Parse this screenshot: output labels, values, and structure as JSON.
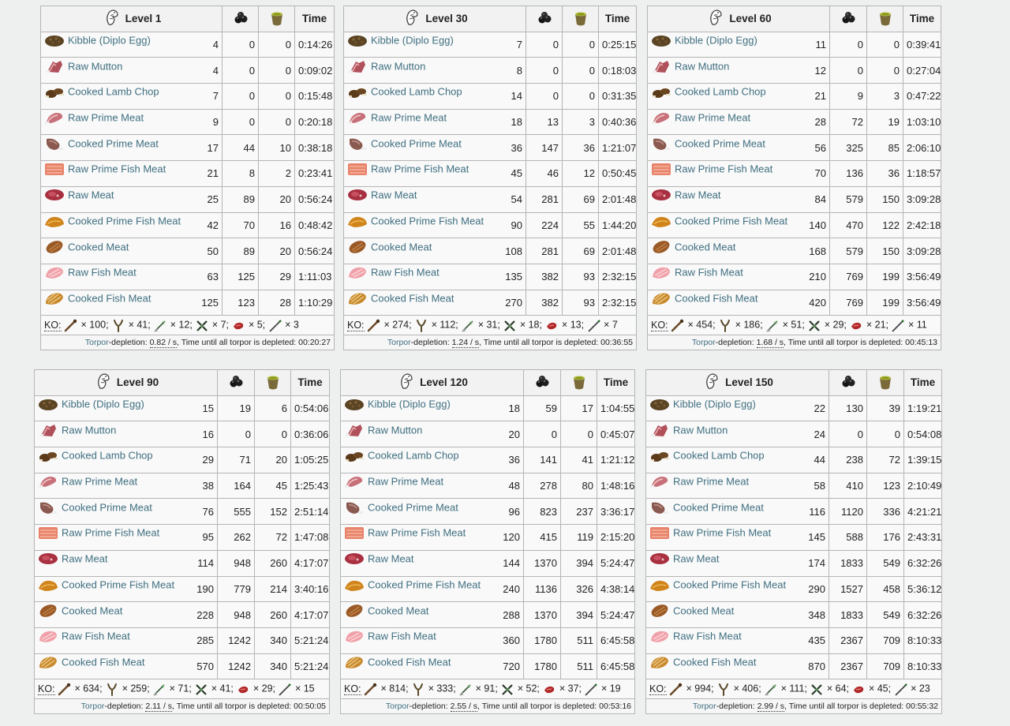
{
  "labels": {
    "time": "Time",
    "ko": "KO:",
    "torpor_link": "Torpor",
    "torpor_mid": "-depletion: ",
    "torpor_unit": " / s",
    "torpor_end": ", Time until all torpor is depleted: "
  },
  "foods": [
    {
      "name": "Kibble (Diplo Egg)",
      "icon": "kibble-icon"
    },
    {
      "name": "Raw Mutton",
      "icon": "raw-mutton-icon"
    },
    {
      "name": "Cooked Lamb Chop",
      "icon": "cooked-lamb-chop-icon"
    },
    {
      "name": "Raw Prime Meat",
      "icon": "raw-prime-meat-icon"
    },
    {
      "name": "Cooked Prime Meat",
      "icon": "cooked-prime-meat-icon"
    },
    {
      "name": "Raw Prime Fish Meat",
      "icon": "raw-prime-fish-meat-icon"
    },
    {
      "name": "Raw Meat",
      "icon": "raw-meat-icon"
    },
    {
      "name": "Cooked Prime Fish Meat",
      "icon": "cooked-prime-fish-meat-icon"
    },
    {
      "name": "Cooked Meat",
      "icon": "cooked-meat-icon"
    },
    {
      "name": "Raw Fish Meat",
      "icon": "raw-fish-meat-icon"
    },
    {
      "name": "Cooked Fish Meat",
      "icon": "cooked-fish-meat-icon"
    }
  ],
  "ko_weapons": [
    "club-icon",
    "slingshot-icon",
    "tranq-arrow-icon",
    "crossbow-tranq-icon",
    "shocking-dart-icon",
    "tranq-dart-icon"
  ],
  "colors": {
    "food_link": "#3f6f80",
    "border": "#b5b5b5",
    "narcoberry": "#1a1a1a",
    "narcotic": "#8a8a2a"
  },
  "tables": [
    {
      "level": "Level 1",
      "rows": [
        [
          "4",
          "0",
          "0",
          "0:14:26"
        ],
        [
          "4",
          "0",
          "0",
          "0:09:02"
        ],
        [
          "7",
          "0",
          "0",
          "0:15:48"
        ],
        [
          "9",
          "0",
          "0",
          "0:20:18"
        ],
        [
          "17",
          "44",
          "10",
          "0:38:18"
        ],
        [
          "21",
          "8",
          "2",
          "0:23:41"
        ],
        [
          "25",
          "89",
          "20",
          "0:56:24"
        ],
        [
          "42",
          "70",
          "16",
          "0:48:42"
        ],
        [
          "50",
          "89",
          "20",
          "0:56:24"
        ],
        [
          "63",
          "125",
          "29",
          "1:11:03"
        ],
        [
          "125",
          "123",
          "28",
          "1:10:29"
        ]
      ],
      "ko": [
        "100",
        "41",
        "12",
        "7",
        "5",
        "3"
      ],
      "rate": "0.82",
      "deplete": "00:20:27"
    },
    {
      "level": "Level 30",
      "rows": [
        [
          "7",
          "0",
          "0",
          "0:25:15"
        ],
        [
          "8",
          "0",
          "0",
          "0:18:03"
        ],
        [
          "14",
          "0",
          "0",
          "0:31:35"
        ],
        [
          "18",
          "13",
          "3",
          "0:40:36"
        ],
        [
          "36",
          "147",
          "36",
          "1:21:07"
        ],
        [
          "45",
          "46",
          "12",
          "0:50:45"
        ],
        [
          "54",
          "281",
          "69",
          "2:01:48"
        ],
        [
          "90",
          "224",
          "55",
          "1:44:20"
        ],
        [
          "108",
          "281",
          "69",
          "2:01:48"
        ],
        [
          "135",
          "382",
          "93",
          "2:32:15"
        ],
        [
          "270",
          "382",
          "93",
          "2:32:15"
        ]
      ],
      "ko": [
        "274",
        "112",
        "31",
        "18",
        "13",
        "7"
      ],
      "rate": "1.24",
      "deplete": "00:36:55"
    },
    {
      "level": "Level 60",
      "rows": [
        [
          "11",
          "0",
          "0",
          "0:39:41"
        ],
        [
          "12",
          "0",
          "0",
          "0:27:04"
        ],
        [
          "21",
          "9",
          "3",
          "0:47:22"
        ],
        [
          "28",
          "72",
          "19",
          "1:03:10"
        ],
        [
          "56",
          "325",
          "85",
          "2:06:10"
        ],
        [
          "70",
          "136",
          "36",
          "1:18:57"
        ],
        [
          "84",
          "579",
          "150",
          "3:09:28"
        ],
        [
          "140",
          "470",
          "122",
          "2:42:18"
        ],
        [
          "168",
          "579",
          "150",
          "3:09:28"
        ],
        [
          "210",
          "769",
          "199",
          "3:56:49"
        ],
        [
          "420",
          "769",
          "199",
          "3:56:49"
        ]
      ],
      "ko": [
        "454",
        "186",
        "51",
        "29",
        "21",
        "11"
      ],
      "rate": "1.68",
      "deplete": "00:45:13"
    },
    {
      "level": "Level 90",
      "rows": [
        [
          "15",
          "19",
          "6",
          "0:54:06"
        ],
        [
          "16",
          "0",
          "0",
          "0:36:06"
        ],
        [
          "29",
          "71",
          "20",
          "1:05:25"
        ],
        [
          "38",
          "164",
          "45",
          "1:25:43"
        ],
        [
          "76",
          "555",
          "152",
          "2:51:14"
        ],
        [
          "95",
          "262",
          "72",
          "1:47:08"
        ],
        [
          "114",
          "948",
          "260",
          "4:17:07"
        ],
        [
          "190",
          "779",
          "214",
          "3:40:16"
        ],
        [
          "228",
          "948",
          "260",
          "4:17:07"
        ],
        [
          "285",
          "1242",
          "340",
          "5:21:24"
        ],
        [
          "570",
          "1242",
          "340",
          "5:21:24"
        ]
      ],
      "ko": [
        "634",
        "259",
        "71",
        "41",
        "29",
        "15"
      ],
      "rate": "2.11",
      "deplete": "00:50:05"
    },
    {
      "level": "Level 120",
      "rows": [
        [
          "18",
          "59",
          "17",
          "1:04:55"
        ],
        [
          "20",
          "0",
          "0",
          "0:45:07"
        ],
        [
          "36",
          "141",
          "41",
          "1:21:12"
        ],
        [
          "48",
          "278",
          "80",
          "1:48:16"
        ],
        [
          "96",
          "823",
          "237",
          "3:36:17"
        ],
        [
          "120",
          "415",
          "119",
          "2:15:20"
        ],
        [
          "144",
          "1370",
          "394",
          "5:24:47"
        ],
        [
          "240",
          "1136",
          "326",
          "4:38:14"
        ],
        [
          "288",
          "1370",
          "394",
          "5:24:47"
        ],
        [
          "360",
          "1780",
          "511",
          "6:45:58"
        ],
        [
          "720",
          "1780",
          "511",
          "6:45:58"
        ]
      ],
      "ko": [
        "814",
        "333",
        "91",
        "52",
        "37",
        "19"
      ],
      "rate": "2.55",
      "deplete": "00:53:16"
    },
    {
      "level": "Level 150",
      "rows": [
        [
          "22",
          "130",
          "39",
          "1:19:21"
        ],
        [
          "24",
          "0",
          "0",
          "0:54:08"
        ],
        [
          "44",
          "238",
          "72",
          "1:39:15"
        ],
        [
          "58",
          "410",
          "123",
          "2:10:49"
        ],
        [
          "116",
          "1120",
          "336",
          "4:21:21"
        ],
        [
          "145",
          "588",
          "176",
          "2:43:31"
        ],
        [
          "174",
          "1833",
          "549",
          "6:32:26"
        ],
        [
          "290",
          "1527",
          "458",
          "5:36:12"
        ],
        [
          "348",
          "1833",
          "549",
          "6:32:26"
        ],
        [
          "435",
          "2367",
          "709",
          "8:10:33"
        ],
        [
          "870",
          "2367",
          "709",
          "8:10:33"
        ]
      ],
      "ko": [
        "994",
        "406",
        "111",
        "64",
        "45",
        "23"
      ],
      "rate": "2.99",
      "deplete": "00:55:32"
    }
  ]
}
